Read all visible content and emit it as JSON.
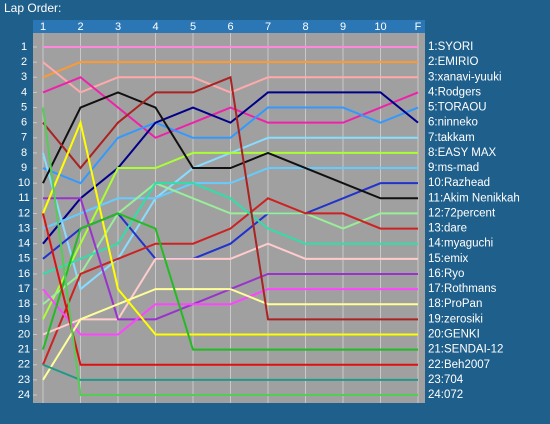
{
  "chart_data": {
    "type": "line",
    "title": "Lap Order:",
    "categories": [
      "1",
      "2",
      "3",
      "4",
      "5",
      "6",
      "7",
      "8",
      "9",
      "10",
      "F"
    ],
    "ylim": [
      24,
      1
    ],
    "yticks": [
      1,
      2,
      3,
      4,
      5,
      6,
      7,
      8,
      9,
      10,
      11,
      12,
      13,
      14,
      15,
      16,
      17,
      18,
      19,
      20,
      21,
      22,
      23,
      24
    ],
    "grid": true,
    "series": [
      {
        "name": "1:SYORI",
        "color": "#ff88dd",
        "values": [
          1,
          1,
          1,
          1,
          1,
          1,
          1,
          1,
          1,
          1,
          1
        ]
      },
      {
        "name": "2:EMIRIO",
        "color": "#ff9933",
        "values": [
          3,
          2,
          2,
          2,
          2,
          2,
          2,
          2,
          2,
          2,
          2
        ]
      },
      {
        "name": "3:xanavi-yuuki",
        "color": "#ffaaaa",
        "values": [
          2,
          4,
          3,
          3,
          3,
          4,
          3,
          3,
          3,
          3,
          3
        ]
      },
      {
        "name": "4:Rodgers",
        "color": "#ee22aa",
        "values": [
          4,
          3,
          5,
          7,
          6,
          5,
          6,
          6,
          6,
          5,
          4
        ]
      },
      {
        "name": "5:TORAOU",
        "color": "#3399ff",
        "values": [
          9,
          10,
          7,
          6,
          7,
          7,
          5,
          5,
          5,
          6,
          5
        ]
      },
      {
        "name": "6:ninneko",
        "color": "#000088",
        "values": [
          14,
          11,
          9,
          6,
          5,
          6,
          4,
          4,
          4,
          4,
          6
        ]
      },
      {
        "name": "7:takkam",
        "color": "#88ddff",
        "values": [
          8,
          17,
          15,
          11,
          9,
          8,
          7,
          7,
          7,
          7,
          7
        ]
      },
      {
        "name": "8:EASY MAX",
        "color": "#aaff33",
        "values": [
          19,
          14,
          9,
          9,
          8,
          8,
          8,
          8,
          8,
          8,
          8
        ]
      },
      {
        "name": "9:ms-mad",
        "color": "#66ccff",
        "values": [
          13,
          12,
          11,
          11,
          10,
          10,
          9,
          9,
          9,
          9,
          9
        ]
      },
      {
        "name": "10:Razhead",
        "color": "#2233cc",
        "values": [
          15,
          13,
          12,
          15,
          15,
          14,
          12,
          12,
          11,
          10,
          10
        ]
      },
      {
        "name": "11:Akim Nenikkah",
        "color": "#111111",
        "values": [
          10,
          5,
          4,
          5,
          9,
          9,
          8,
          9,
          10,
          11,
          11
        ]
      },
      {
        "name": "12:72percent",
        "color": "#99ee99",
        "values": [
          18,
          16,
          12,
          10,
          11,
          12,
          12,
          12,
          13,
          12,
          12
        ]
      },
      {
        "name": "13:dare",
        "color": "#cc2222",
        "values": [
          22,
          16,
          15,
          14,
          14,
          13,
          11,
          12,
          12,
          13,
          13
        ]
      },
      {
        "name": "14:myaguchi",
        "color": "#33ddaa",
        "values": [
          16,
          15,
          14,
          10,
          10,
          11,
          13,
          14,
          14,
          14,
          14
        ]
      },
      {
        "name": "15:emix",
        "color": "#ffcccc",
        "values": [
          20,
          19,
          19,
          15,
          15,
          15,
          14,
          15,
          15,
          15,
          15
        ]
      },
      {
        "name": "16:Ryo",
        "color": "#9933cc",
        "values": [
          11,
          11,
          19,
          19,
          18,
          17,
          16,
          16,
          16,
          16,
          16
        ]
      },
      {
        "name": "17:Rothmans",
        "color": "#ff44ff",
        "values": [
          17,
          20,
          20,
          18,
          18,
          18,
          17,
          17,
          17,
          17,
          17
        ]
      },
      {
        "name": "18:ProPan",
        "color": "#ffff99",
        "values": [
          23,
          19,
          18,
          17,
          17,
          17,
          18,
          18,
          18,
          18,
          18
        ]
      },
      {
        "name": "19:zerosiki",
        "color": "#aa2222",
        "values": [
          6,
          9,
          6,
          4,
          4,
          3,
          19,
          19,
          19,
          19,
          19
        ]
      },
      {
        "name": "20:GENKI",
        "color": "#ffff00",
        "values": [
          12,
          6,
          17,
          20,
          20,
          20,
          20,
          20,
          20,
          20,
          20
        ]
      },
      {
        "name": "21:SENDAI-12",
        "color": "#22bb22",
        "values": [
          21,
          13,
          12,
          13,
          21,
          21,
          21,
          21,
          21,
          21,
          21
        ]
      },
      {
        "name": "22:Beh2007",
        "color": "#dd1111",
        "values": [
          12,
          22,
          22,
          22,
          22,
          22,
          22,
          22,
          22,
          22,
          22
        ]
      },
      {
        "name": "23:704",
        "color": "#229988",
        "values": [
          22,
          23,
          23,
          23,
          23,
          23,
          23,
          23,
          23,
          23,
          23
        ]
      },
      {
        "name": "24:072",
        "color": "#55cc55",
        "values": [
          5,
          24,
          24,
          24,
          24,
          24,
          24,
          24,
          24,
          24,
          24
        ]
      }
    ]
  }
}
